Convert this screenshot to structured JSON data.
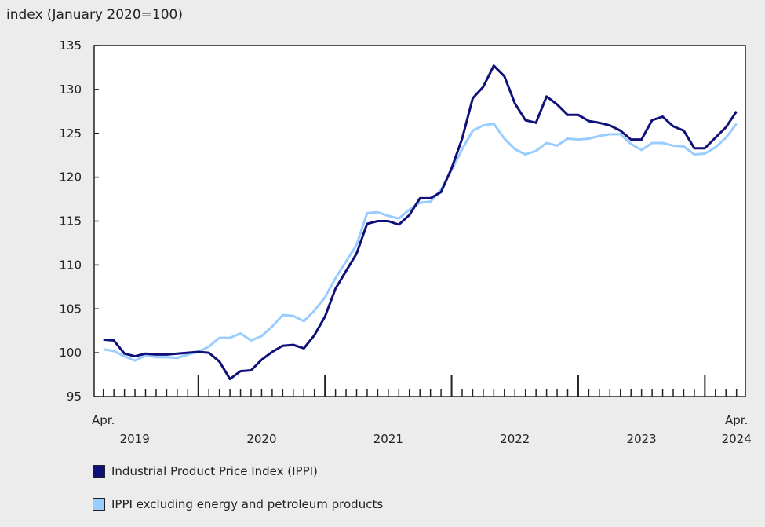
{
  "chart_data": {
    "type": "line",
    "ylabel": "index (January 2020=100)",
    "ylim": [
      95,
      135
    ],
    "yticks": [
      "95",
      "100",
      "105",
      "110",
      "115",
      "120",
      "125",
      "130",
      "135"
    ],
    "x_start": "2019-04",
    "x_end": "2024-04",
    "x_frequency": "monthly",
    "x_labels": [
      {
        "month": "2019-04",
        "line1": "Apr.",
        "line2": "2019"
      },
      {
        "month": "2020-07",
        "line1": "",
        "line2": "2020"
      },
      {
        "month": "2021-07",
        "line1": "",
        "line2": "2021"
      },
      {
        "month": "2022-07",
        "line1": "",
        "line2": "2022"
      },
      {
        "month": "2023-07",
        "line1": "",
        "line2": "2023"
      },
      {
        "month": "2024-04",
        "line1": "Apr.",
        "line2": "2024"
      }
    ],
    "grid": false,
    "legend_position": "bottom",
    "series": [
      {
        "name": "Industrial Product Price Index (IPPI)",
        "color": "#10107a",
        "values": [
          101.5,
          101.4,
          99.9,
          99.6,
          99.9,
          99.8,
          99.8,
          99.9,
          100.0,
          100.1,
          100.0,
          99.0,
          97.0,
          97.9,
          98.0,
          99.2,
          100.1,
          100.8,
          100.9,
          100.5,
          102.0,
          104.1,
          107.3,
          109.3,
          111.3,
          114.7,
          115.0,
          115.0,
          114.6,
          115.7,
          117.6,
          117.6,
          118.3,
          121.0,
          124.4,
          129.0,
          130.3,
          132.7,
          131.5,
          128.4,
          126.5,
          126.2,
          129.2,
          128.3,
          127.1,
          127.1,
          126.4,
          126.2,
          125.9,
          125.3,
          124.3,
          124.3,
          126.5,
          126.9,
          125.8,
          125.3,
          123.3,
          123.3,
          124.5,
          125.7,
          127.5
        ]
      },
      {
        "name": "IPPI excluding energy and petroleum products",
        "color": "#99ccff",
        "values": [
          100.4,
          100.2,
          99.6,
          99.1,
          99.7,
          99.5,
          99.5,
          99.4,
          99.8,
          100.1,
          100.7,
          101.7,
          101.7,
          102.2,
          101.4,
          101.9,
          103.0,
          104.3,
          104.2,
          103.6,
          104.8,
          106.3,
          108.5,
          110.4,
          112.3,
          115.9,
          116.0,
          115.6,
          115.3,
          116.3,
          117.1,
          117.2,
          118.6,
          120.8,
          123.2,
          125.3,
          125.9,
          126.1,
          124.4,
          123.2,
          122.6,
          123.0,
          123.9,
          123.6,
          124.4,
          124.3,
          124.4,
          124.7,
          124.9,
          124.9,
          123.8,
          123.1,
          123.9,
          123.9,
          123.6,
          123.5,
          122.6,
          122.7,
          123.4,
          124.5,
          126.1
        ]
      }
    ]
  }
}
